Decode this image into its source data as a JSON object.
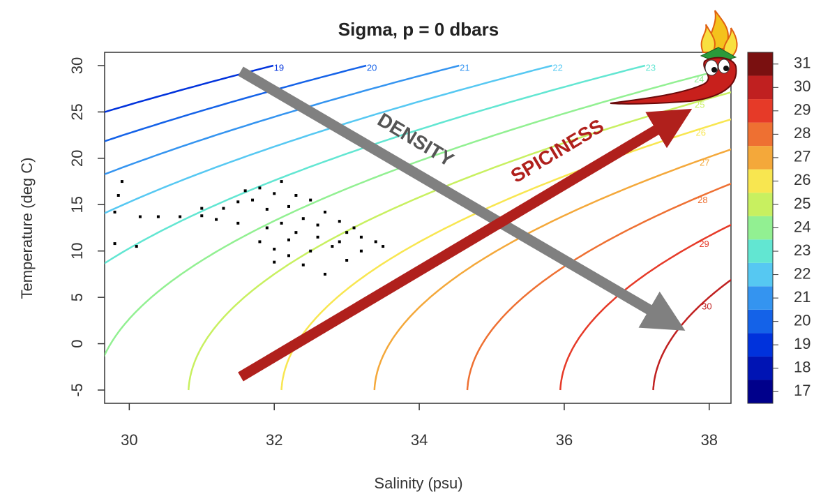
{
  "chart_data": {
    "type": "contour-scatter",
    "title": "Sigma, p = 0 dbars",
    "xlabel": "Salinity (psu)",
    "ylabel": "Temperature (deg C)",
    "xlim": [
      29.66,
      38.3
    ],
    "ylim": [
      -6.43,
      31.43
    ],
    "xticks": [
      30,
      32,
      34,
      36,
      38
    ],
    "yticks": [
      -5,
      0,
      5,
      10,
      15,
      20,
      25,
      30
    ],
    "contours": {
      "levels": [
        19,
        20,
        21,
        22,
        23,
        24,
        25,
        26,
        27,
        28,
        29,
        30
      ]
    },
    "colorbar": {
      "clim": [
        16.5,
        31.5
      ],
      "levels": [
        17,
        18,
        19,
        20,
        21,
        22,
        23,
        24,
        25,
        26,
        27,
        28,
        29,
        30,
        31
      ],
      "colors": [
        "#00008b",
        "#0014b4",
        "#0032dc",
        "#1462e8",
        "#3494f0",
        "#56c8f2",
        "#62e6d2",
        "#92f092",
        "#c8f060",
        "#f8e650",
        "#f4a83a",
        "#ee7032",
        "#e63a28",
        "#c02020",
        "#7a1010"
      ]
    },
    "scatter": {
      "color": "#000000",
      "x": [
        30.15,
        30.4,
        30.7,
        31.0,
        31.3,
        31.0,
        31.5,
        31.6,
        31.8,
        32.0,
        32.1,
        32.3,
        31.7,
        31.9,
        32.2,
        32.5,
        32.7,
        32.4,
        32.1,
        31.9,
        32.3,
        32.6,
        32.9,
        33.0,
        33.2,
        33.4,
        33.5,
        33.2,
        32.8,
        32.5,
        32.2,
        32.0,
        32.4,
        32.7,
        33.0,
        31.8,
        31.5,
        31.2,
        32.9,
        32.6,
        33.1,
        32.2,
        32.0,
        29.8,
        29.85,
        29.8,
        30.1,
        29.9
      ],
      "y": [
        13.7,
        13.7,
        13.7,
        13.8,
        14.6,
        14.6,
        15.3,
        16.5,
        16.8,
        16.2,
        17.5,
        16.0,
        15.5,
        14.5,
        14.8,
        15.5,
        14.2,
        13.5,
        13.0,
        12.5,
        12.0,
        12.8,
        13.2,
        12.0,
        11.5,
        11.0,
        10.5,
        10.0,
        10.5,
        10.0,
        9.5,
        8.8,
        8.5,
        7.5,
        9.0,
        11.0,
        13.0,
        13.4,
        11.0,
        11.5,
        12.5,
        11.2,
        10.2,
        14.2,
        16.0,
        10.8,
        10.5,
        17.5
      ]
    },
    "annotations": [
      "DENSITY",
      "SPICINESS"
    ]
  }
}
